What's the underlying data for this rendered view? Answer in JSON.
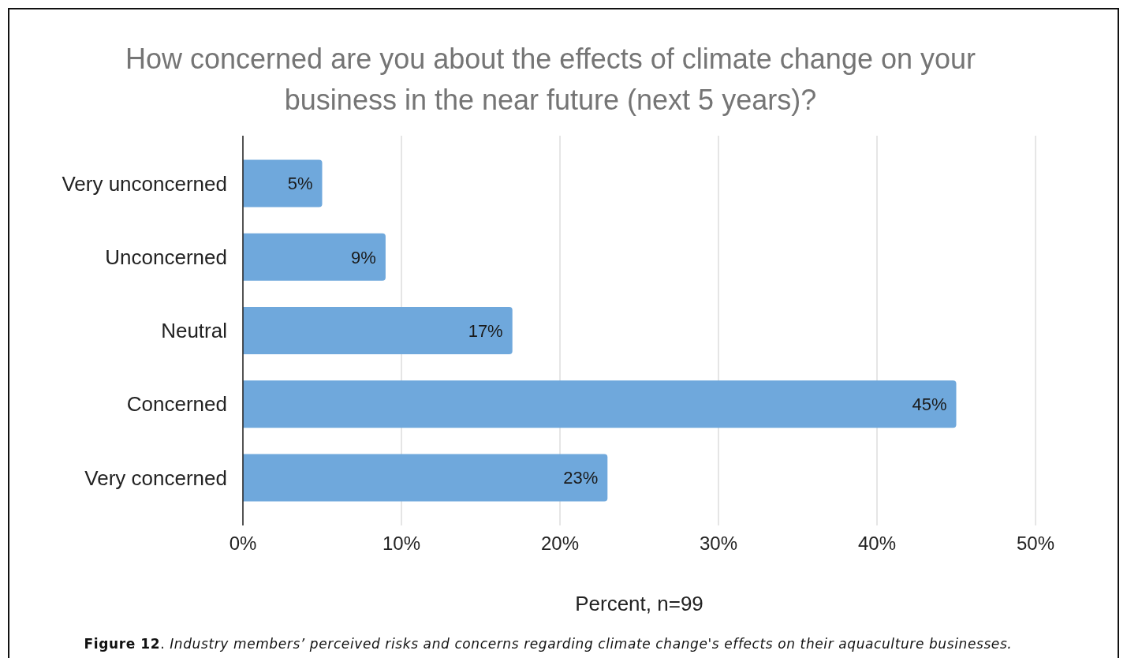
{
  "chart_data": {
    "type": "bar",
    "orientation": "horizontal",
    "title": "How concerned are you about the effects of climate change on your business in the near future (next 5 years)?",
    "xlabel": "Percent, n=99",
    "categories": [
      "Very unconcerned",
      "Unconcerned",
      "Neutral",
      "Concerned",
      "Very concerned"
    ],
    "values": [
      5,
      9,
      17,
      45,
      23
    ],
    "color": "#6fa8dc",
    "value_labels": [
      "5%",
      "9%",
      "17%",
      "45%",
      "23%"
    ],
    "xlim": [
      0,
      50
    ],
    "xticks": [
      {
        "value": 0,
        "label": "0%"
      },
      {
        "value": 10,
        "label": "10%"
      },
      {
        "value": 20,
        "label": "20%"
      },
      {
        "value": 30,
        "label": "30%"
      },
      {
        "value": 40,
        "label": "40%"
      },
      {
        "value": 50,
        "label": "50%"
      }
    ],
    "grid": "x",
    "annotations": [
      "Figure 12. Industry members’ perceived risks and concerns regarding climate change's effects on their aquaculture businesses."
    ]
  }
}
